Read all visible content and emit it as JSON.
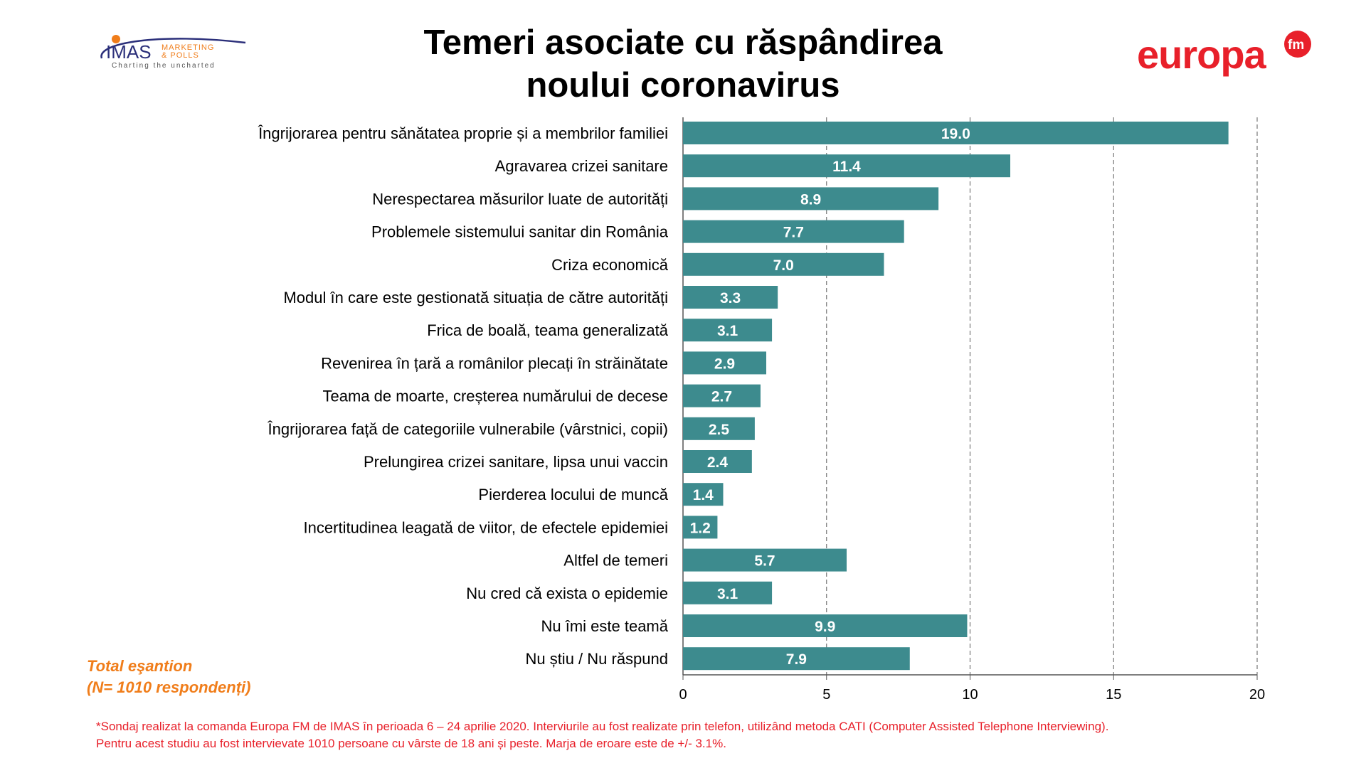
{
  "title": {
    "line1": "Temeri asociate cu răspândirea",
    "line2": "noului coronavirus"
  },
  "logos": {
    "imas": {
      "name": "IMAS",
      "line1": "MARKETING",
      "line2": "& POLLS",
      "tagline": "Charting the uncharted"
    },
    "europa": "europa fm"
  },
  "sample": {
    "line1": "Total eşantion",
    "line2": "(N= 1010 respondenți)"
  },
  "footnote": {
    "line1": "*Sondaj realizat la comanda Europa FM de IMAS în perioada  6 – 24 aprilie 2020. Interviurile au fost realizate prin telefon, utilizând metoda CATI (Computer Assisted Telephone Interviewing).",
    "line2": "Pentru acest studiu au fost intervievate 1010 persoane cu vârste de 18 ani și peste. Marja de eroare este de +/- 3.1%."
  },
  "colors": {
    "bar": "#3d8b8e",
    "accent_orange": "#f07d1a",
    "footnote_red": "#e8202a"
  },
  "chart_data": {
    "type": "bar",
    "orientation": "horizontal",
    "categories": [
      "Îngrijorarea pentru sănătatea proprie și a membrilor familiei",
      "Agravarea crizei sanitare",
      "Nerespectarea măsurilor luate de autorități",
      "Problemele sistemului sanitar din România",
      "Criza economică",
      "Modul în care este gestionată situația de către autorități",
      "Frica de boală, teama generalizată",
      "Revenirea în țară a românilor plecați în străinătate",
      "Teama de moarte, creșterea numărului de decese",
      "Îngrijorarea față de categoriile vulnerabile (vârstnici, copii)",
      "Prelungirea crizei sanitare, lipsa unui vaccin",
      "Pierderea locului de muncă",
      "Incertitudinea leagată de viitor, de efectele epidemiei",
      "Altfel de temeri",
      "Nu cred că exista o epidemie",
      "Nu îmi este teamă",
      "Nu știu / Nu răspund"
    ],
    "values": [
      19.0,
      11.4,
      8.9,
      7.7,
      7.0,
      3.3,
      3.1,
      2.9,
      2.7,
      2.5,
      2.4,
      1.4,
      1.2,
      5.7,
      3.1,
      9.9,
      7.9
    ],
    "data_labels": [
      "19.0",
      "11.4",
      "8.9",
      "7.7",
      "7.0",
      "3.3",
      "3.1",
      "2.9",
      "2.7",
      "2.5",
      "2.4",
      "1.4",
      "1.2",
      "5.7",
      "3.1",
      "9.9",
      "7.9"
    ],
    "xlim": [
      0,
      20
    ],
    "xticks": [
      "0",
      "5",
      "10",
      "15",
      "20"
    ],
    "grid": "vertical dashed"
  }
}
